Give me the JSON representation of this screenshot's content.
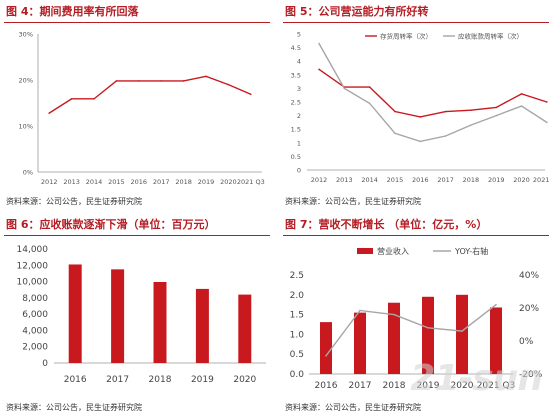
{
  "colors": {
    "accent": "#b51d24",
    "series_red": "#c8191f",
    "series_gray": "#a6a6a6",
    "axis": "#999999"
  },
  "panel1": {
    "title": "图 4：期间费用率有所回落",
    "source": "资料来源：公司公告，民生证券研究院"
  },
  "panel2": {
    "title": "图 5：公司营运能力有所好转",
    "source": "资料来源：公司公告，民生证券研究院"
  },
  "panel3": {
    "title": "图 6：应收账款逐渐下滑（单位：百万元）",
    "source": "资料来源：公司公告，民生证券研究院"
  },
  "panel4": {
    "title": "图 7：营收不断增长 （单位：亿元，%）",
    "source": "资料来源：公司公告，民生证券研究院"
  },
  "watermark": "21-sun",
  "chart_data": [
    {
      "type": "line",
      "title": "图 4：期间费用率有所回落",
      "x": [
        "2012",
        "2013",
        "2014",
        "2015",
        "2016",
        "2017",
        "2018",
        "2019",
        "2020",
        "2021 Q3"
      ],
      "series": [
        {
          "name": "",
          "color": "#c8191f",
          "values": [
            12.8,
            15.9,
            15.9,
            19.8,
            19.8,
            19.8,
            19.8,
            20.8,
            19.0,
            16.9
          ]
        }
      ],
      "yticks": [
        "0%",
        "10%",
        "20%",
        "30%"
      ],
      "ylim": [
        0,
        30
      ],
      "grid": false
    },
    {
      "type": "line",
      "title": "图 5：公司营运能力有所好转",
      "x": [
        "2012",
        "2013",
        "2014",
        "2015",
        "2016",
        "2017",
        "2018",
        "2019",
        "2020",
        "2021 Q3"
      ],
      "series": [
        {
          "name": "存货周转率（次）",
          "color": "#c8191f",
          "values": [
            3.7,
            3.05,
            3.05,
            2.15,
            1.95,
            2.15,
            2.2,
            2.3,
            2.8,
            2.5
          ]
        },
        {
          "name": "应收账款周转率（次）",
          "color": "#a6a6a6",
          "values": [
            4.65,
            3.0,
            2.45,
            1.35,
            1.05,
            1.25,
            1.65,
            2.0,
            2.35,
            1.75
          ]
        }
      ],
      "yticks": [
        "0",
        "0.5",
        "1",
        "1.5",
        "2",
        "2.5",
        "3",
        "3.5",
        "4",
        "4.5",
        "5"
      ],
      "ylim": [
        0,
        5
      ],
      "legend": "top-right",
      "grid": false
    },
    {
      "type": "bar",
      "title": "图 6：应收账款逐渐下滑（单位：百万元）",
      "categories": [
        "2016",
        "2017",
        "2018",
        "2019",
        "2020"
      ],
      "values": [
        12100,
        11500,
        9950,
        9100,
        8400
      ],
      "color": "#c8191f",
      "yticks": [
        "0",
        "2,000",
        "4,000",
        "6,000",
        "8,000",
        "10,000",
        "12,000",
        "14,000"
      ],
      "ylim": [
        0,
        14000
      ],
      "grid": false
    },
    {
      "type": "bar",
      "title": "图 7：营收不断增长 （单位：亿元，%）",
      "categories": [
        "2016",
        "2017",
        "2018",
        "2019",
        "2020",
        "2021 Q3"
      ],
      "series": [
        {
          "name": "营业收入",
          "type": "bar",
          "axis": "left",
          "color": "#c8191f",
          "values": [
            1.31,
            1.55,
            1.8,
            1.95,
            2.0,
            1.68
          ]
        },
        {
          "name": "YOY-右轴",
          "type": "line",
          "axis": "right",
          "color": "#a6a6a6",
          "values": [
            -9,
            18.5,
            16,
            8,
            6,
            22
          ]
        }
      ],
      "yticks_left": [
        "0.0",
        "0.5",
        "1.0",
        "1.5",
        "2.0",
        "2.5"
      ],
      "ylim_left": [
        0,
        2.5
      ],
      "yticks_right": [
        "-20%",
        "0%",
        "20%",
        "40%"
      ],
      "ylim_right": [
        -20,
        40
      ],
      "legend": "top",
      "grid": false
    }
  ]
}
